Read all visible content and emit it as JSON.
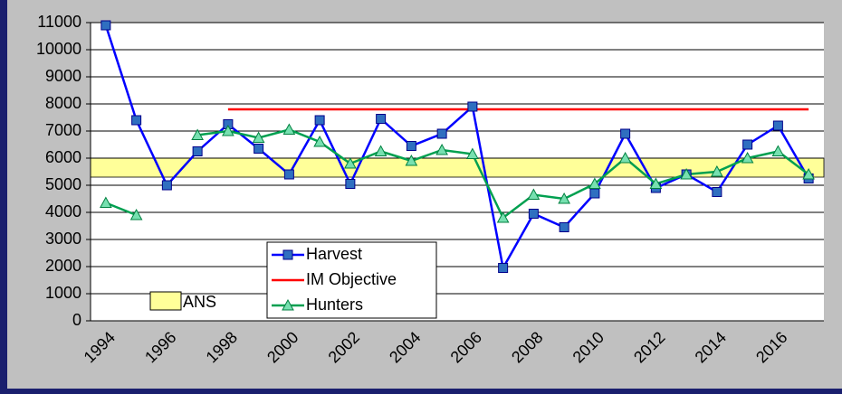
{
  "chart_data": {
    "type": "line",
    "categories": [
      "1994",
      null,
      "1996",
      null,
      "1998",
      null,
      "2000",
      null,
      "2002",
      null,
      "2004",
      null,
      "2006",
      null,
      "2008",
      null,
      "2010",
      null,
      "2012",
      null,
      "2014",
      null,
      "2016",
      null
    ],
    "series": [
      {
        "name": "Harvest",
        "color": "#0000ff",
        "marker": "square",
        "marker_color": "#2f6fc0",
        "values": [
          10900,
          7400,
          5000,
          6250,
          7250,
          6350,
          5400,
          7400,
          5050,
          7450,
          6450,
          6900,
          7900,
          1950,
          3950,
          3450,
          4700,
          6900,
          4900,
          5400,
          4750,
          6500,
          7200,
          5250
        ]
      },
      {
        "name": "IM Objective",
        "color": "#ff0000",
        "marker": "none",
        "values": [
          null,
          null,
          null,
          null,
          7800,
          7800,
          7800,
          7800,
          7800,
          7800,
          7800,
          7800,
          7800,
          7800,
          7800,
          7800,
          7800,
          7800,
          7800,
          7800,
          7800,
          7800,
          7800,
          7800
        ]
      },
      {
        "name": "Hunters",
        "color": "#00a050",
        "marker": "triangle",
        "marker_color": "#77e0b0",
        "values": [
          4350,
          3900,
          null,
          6850,
          7000,
          6750,
          7050,
          6600,
          5800,
          6250,
          5900,
          6300,
          6150,
          3800,
          4650,
          4500,
          5050,
          6000,
          5050,
          5400,
          5500,
          6000,
          6250,
          5400
        ]
      }
    ],
    "band": {
      "name": "ANS",
      "color": "#ffff99",
      "range": [
        5300,
        6000
      ]
    },
    "ylim": [
      0,
      11000
    ],
    "yticks": [
      0,
      1000,
      2000,
      3000,
      4000,
      5000,
      6000,
      7000,
      8000,
      9000,
      10000,
      11000
    ],
    "grid": true
  }
}
